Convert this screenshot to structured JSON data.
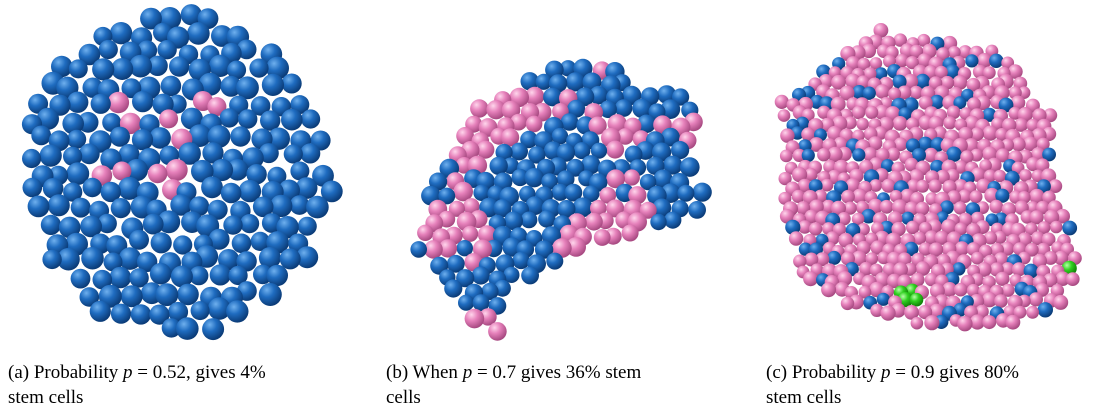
{
  "subfigures": [
    {
      "caption": [
        "(a) Probability ",
        "p",
        " = 0.52, gives 4%",
        "stem cells"
      ]
    },
    {
      "caption": [
        "(b) When ",
        "p",
        " = 0.7 gives 36% stem",
        "cells"
      ]
    },
    {
      "caption": [
        "(c) Probability ",
        "p",
        " = 0.9 gives 80%",
        "stem cells"
      ]
    }
  ]
}
